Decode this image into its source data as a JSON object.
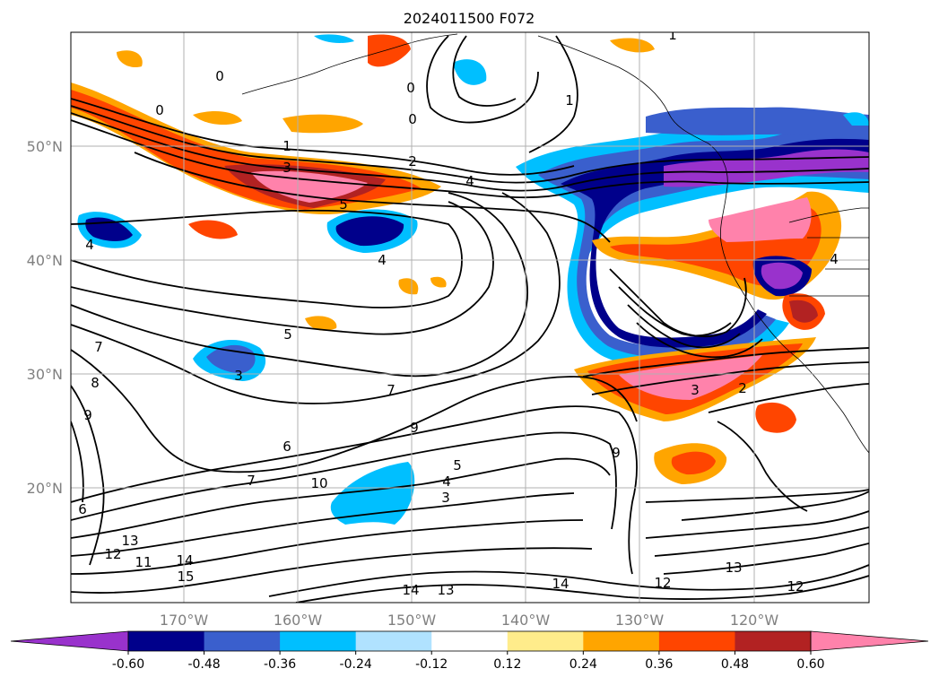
{
  "title": "2024011500 F072",
  "lat_labels": [
    "50°N",
    "40°N",
    "30°N",
    "20°N"
  ],
  "lon_labels": [
    "170°W",
    "160°W",
    "150°W",
    "140°W",
    "130°W",
    "120°W"
  ],
  "colorbar": {
    "ticks": [
      "-0.60",
      "-0.48",
      "-0.36",
      "-0.24",
      "-0.12",
      "0.12",
      "0.24",
      "0.36",
      "0.48",
      "0.60"
    ],
    "colors": [
      "#9932cc",
      "#00008b",
      "#3a5fcd",
      "#00bfff",
      "#b0e2ff",
      "#ffffff",
      "#ffec8b",
      "#ffa500",
      "#ff4500",
      "#b22222",
      "#ff82ab"
    ]
  },
  "contour_labels": [
    "0",
    "0",
    "0",
    "0",
    "1",
    "1",
    "1",
    "2",
    "2",
    "3",
    "3",
    "3",
    "3",
    "4",
    "4",
    "4",
    "4",
    "4",
    "5",
    "5",
    "5",
    "6",
    "6",
    "7",
    "7",
    "7",
    "8",
    "9",
    "9",
    "9",
    "10",
    "11",
    "12",
    "12",
    "13",
    "13",
    "14",
    "14",
    "14",
    "15",
    "12",
    "13"
  ]
}
